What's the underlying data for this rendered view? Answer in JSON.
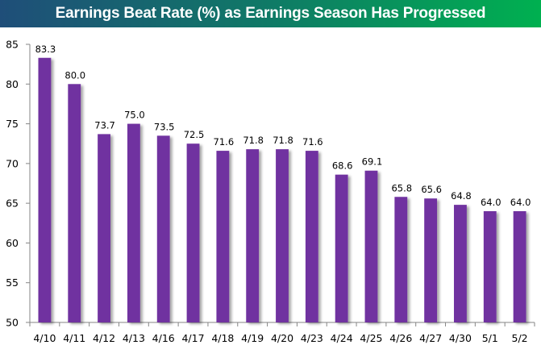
{
  "chart_data": {
    "type": "bar",
    "title": "Earnings Beat Rate (%) as Earnings Season Has Progressed",
    "xlabel": "",
    "ylabel": "",
    "categories": [
      "4/10",
      "4/11",
      "4/12",
      "4/13",
      "4/16",
      "4/17",
      "4/18",
      "4/19",
      "4/20",
      "4/23",
      "4/24",
      "4/25",
      "4/26",
      "4/27",
      "4/30",
      "5/1",
      "5/2"
    ],
    "values": [
      83.3,
      80.0,
      73.7,
      75.0,
      73.5,
      72.5,
      71.6,
      71.8,
      71.8,
      71.6,
      68.6,
      69.1,
      65.8,
      65.6,
      64.8,
      64.0,
      64.0
    ],
    "data_labels": [
      "83.3",
      "80.0",
      "73.7",
      "75.0",
      "73.5",
      "72.5",
      "71.6",
      "71.8",
      "71.8",
      "71.6",
      "68.6",
      "69.1",
      "65.8",
      "65.6",
      "64.8",
      "64.0",
      "64.0"
    ],
    "ylim": [
      50,
      85
    ],
    "yticks": [
      50,
      55,
      60,
      65,
      70,
      75,
      80,
      85
    ],
    "grid": false,
    "legend": "none",
    "colors": {
      "bar": "#7030a0",
      "axis": "#868686",
      "title_gradient_start": "#1f4e79",
      "title_gradient_end": "#00b050"
    }
  }
}
